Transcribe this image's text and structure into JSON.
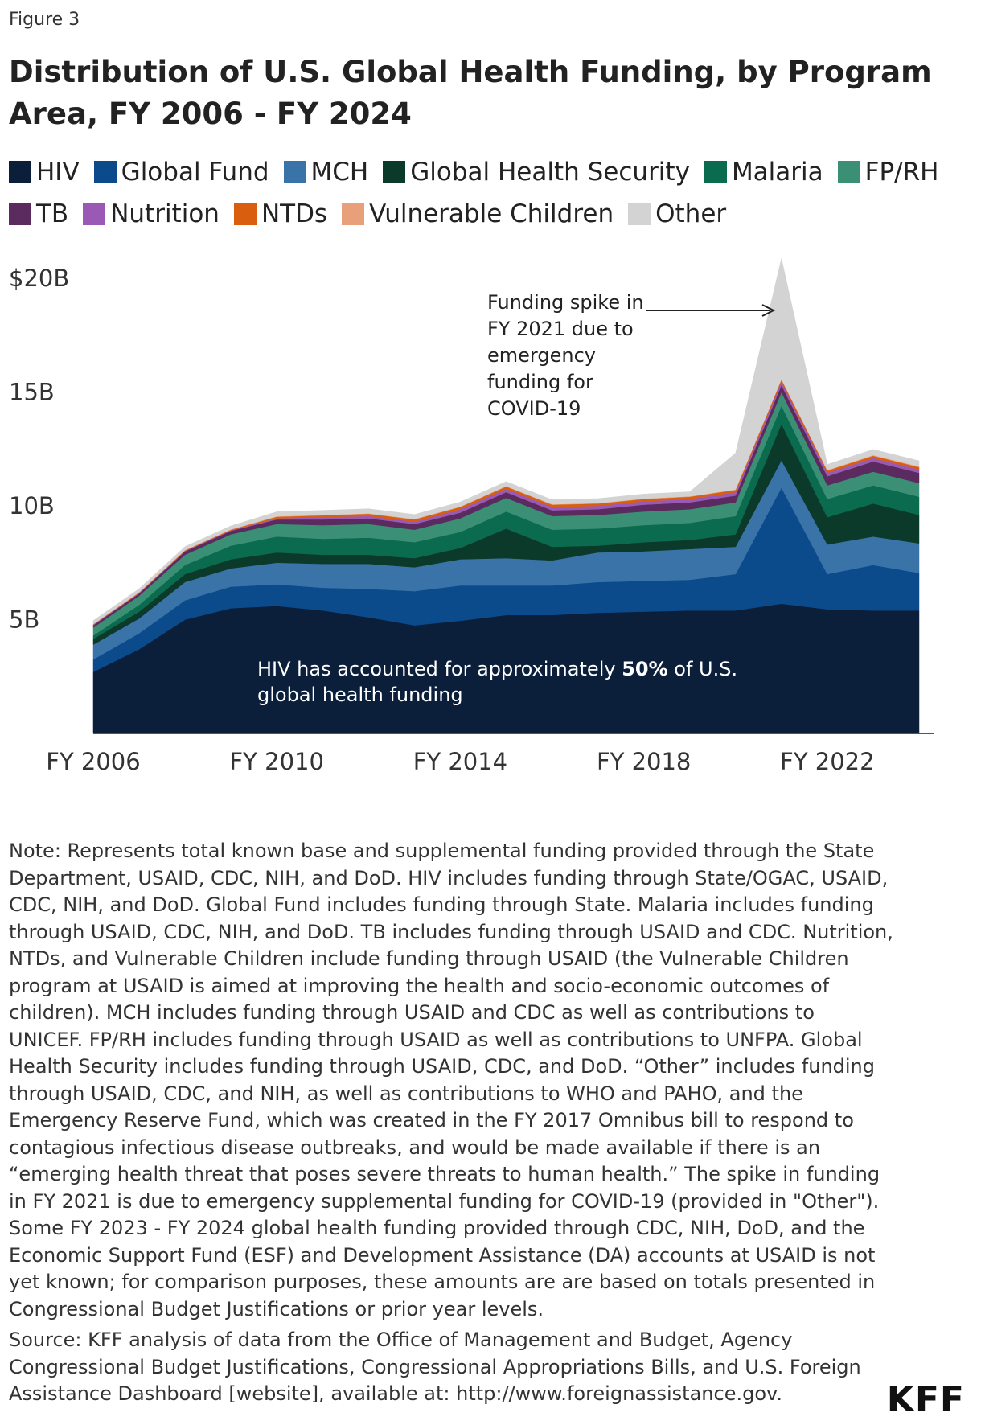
{
  "chart_data": {
    "type": "stacked-area",
    "figure_label": "Figure 3",
    "title": "Distribution of U.S. Global Health Funding, by Program Area, FY 2006 - FY 2024",
    "categories": [
      "FY 2006",
      null,
      null,
      null,
      "FY 2010",
      null,
      null,
      null,
      "FY 2014",
      null,
      null,
      null,
      "FY 2018",
      null,
      null,
      null,
      "FY 2022",
      null,
      null
    ],
    "series": [
      {
        "name": "HIV",
        "color": "#0b1f3a",
        "values": [
          2.7,
          3.7,
          5.0,
          5.5,
          5.6,
          5.4,
          5.1,
          4.75,
          4.95,
          5.2,
          5.2,
          5.3,
          5.35,
          5.4,
          5.4,
          5.7,
          5.45,
          5.4,
          5.4
        ]
      },
      {
        "name": "Global Fund",
        "color": "#0b4a8b",
        "values": [
          0.55,
          0.7,
          0.85,
          0.95,
          0.95,
          1.0,
          1.25,
          1.5,
          1.55,
          1.3,
          1.3,
          1.35,
          1.35,
          1.35,
          1.6,
          5.1,
          1.55,
          2.0,
          1.65
        ]
      },
      {
        "name": "MCH",
        "color": "#3a73a8",
        "values": [
          0.65,
          0.65,
          0.8,
          0.8,
          0.95,
          1.05,
          1.1,
          1.05,
          1.15,
          1.2,
          1.1,
          1.3,
          1.3,
          1.35,
          1.2,
          1.2,
          1.3,
          1.25,
          1.3
        ]
      },
      {
        "name": "Global Health Security",
        "color": "#0b3a2a",
        "values": [
          0.25,
          0.3,
          0.35,
          0.4,
          0.45,
          0.4,
          0.4,
          0.4,
          0.5,
          1.3,
          0.6,
          0.3,
          0.4,
          0.4,
          0.55,
          1.6,
          1.2,
          1.45,
          1.25
        ]
      },
      {
        "name": "Malaria",
        "color": "#0b6b4f",
        "values": [
          0.15,
          0.3,
          0.4,
          0.6,
          0.7,
          0.7,
          0.75,
          0.7,
          0.7,
          0.75,
          0.75,
          0.75,
          0.75,
          0.75,
          0.8,
          0.8,
          0.8,
          0.8,
          0.8
        ]
      },
      {
        "name": "FP/RH",
        "color": "#3a8f74",
        "values": [
          0.35,
          0.4,
          0.45,
          0.5,
          0.55,
          0.6,
          0.6,
          0.55,
          0.6,
          0.6,
          0.6,
          0.6,
          0.6,
          0.6,
          0.6,
          0.6,
          0.6,
          0.6,
          0.6
        ]
      },
      {
        "name": "TB",
        "color": "#5b2a5e",
        "values": [
          0.1,
          0.1,
          0.15,
          0.15,
          0.2,
          0.25,
          0.25,
          0.25,
          0.25,
          0.25,
          0.25,
          0.25,
          0.3,
          0.3,
          0.3,
          0.3,
          0.4,
          0.45,
          0.45
        ]
      },
      {
        "name": "Nutrition",
        "color": "#9b59b6",
        "values": [
          0.02,
          0.02,
          0.02,
          0.02,
          0.05,
          0.1,
          0.1,
          0.1,
          0.15,
          0.15,
          0.15,
          0.15,
          0.15,
          0.15,
          0.15,
          0.15,
          0.15,
          0.15,
          0.15
        ]
      },
      {
        "name": "NTDs",
        "color": "#d95f0e",
        "values": [
          0.02,
          0.02,
          0.02,
          0.03,
          0.07,
          0.08,
          0.1,
          0.1,
          0.1,
          0.1,
          0.1,
          0.1,
          0.1,
          0.1,
          0.1,
          0.1,
          0.1,
          0.1,
          0.1
        ]
      },
      {
        "name": "Vulnerable Children",
        "color": "#e8a07a",
        "values": [
          0.02,
          0.02,
          0.02,
          0.02,
          0.02,
          0.02,
          0.02,
          0.02,
          0.02,
          0.02,
          0.02,
          0.02,
          0.02,
          0.02,
          0.02,
          0.02,
          0.02,
          0.03,
          0.03
        ]
      },
      {
        "name": "Other",
        "color": "#d3d3d3",
        "values": [
          0.15,
          0.15,
          0.15,
          0.15,
          0.2,
          0.2,
          0.2,
          0.2,
          0.2,
          0.2,
          0.2,
          0.2,
          0.2,
          0.2,
          1.6,
          5.3,
          0.25,
          0.25,
          0.25
        ]
      }
    ],
    "ylim": [
      0,
      20
    ],
    "yticks": [
      {
        "value": 5,
        "label": "5B"
      },
      {
        "value": 10,
        "label": "10B"
      },
      {
        "value": 15,
        "label": "15B"
      },
      {
        "value": 20,
        "label": "$20B"
      }
    ],
    "annotations": {
      "spike": "Funding spike in FY 2021 due to emergency funding for COVID-19",
      "hiv": [
        "HIV has accounted for approximately ",
        "50%",
        " of U.S. global health funding"
      ]
    },
    "note": "Note: Represents total known base and supplemental funding provided through the State Department, USAID, CDC, NIH, and DoD. HIV includes funding through State/OGAC, USAID, CDC, NIH, and DoD. Global Fund includes funding through State. Malaria includes funding through USAID, CDC, NIH, and DoD. TB includes funding through USAID and CDC. Nutrition, NTDs, and Vulnerable Children include funding through USAID (the Vulnerable Children program at USAID is aimed at improving the health and socio-economic outcomes of children). MCH includes funding through USAID and CDC as well as contributions to UNICEF. FP/RH includes funding through USAID as well as contributions to UNFPA. Global Health Security includes funding through USAID, CDC, and DoD. “Other” includes funding through USAID, CDC, and NIH, as well as contributions to WHO and PAHO, and the Emergency Reserve Fund, which was created in the FY 2017 Omnibus bill to respond to contagious infectious disease outbreaks, and would be made available if there is an “emerging health threat that poses severe threats to human health.” The spike in funding in FY 2021 is due to emergency supplemental funding for COVID-19 (provided in \"Other\"). Some FY 2023 - FY 2024 global health funding provided through CDC, NIH, DoD, and the Economic Support Fund (ESF) and Development Assistance (DA) accounts at USAID is not yet known; for comparison purposes, these amounts are are based on totals presented in Congressional Budget Justifications or prior year levels.",
    "source": "Source: KFF analysis of data from the Office of Management and Budget, Agency Congressional Budget Justifications, Congressional Appropriations Bills, and U.S. Foreign Assistance Dashboard [website], available at: http://www.foreignassistance.gov.",
    "logo": "KFF"
  }
}
